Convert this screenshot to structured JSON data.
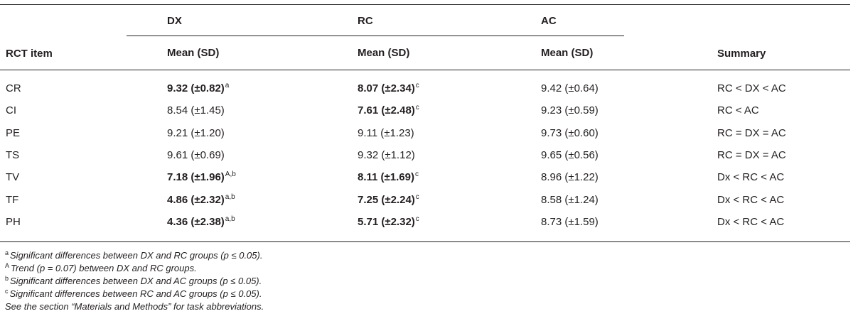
{
  "table": {
    "group_headers": [
      "DX",
      "RC",
      "AC"
    ],
    "row_header": "RCT item",
    "sub_headers": [
      "Mean (SD)",
      "Mean (SD)",
      "Mean (SD)"
    ],
    "summary_header": "Summary",
    "rows": [
      {
        "item": "CR",
        "cells": [
          {
            "v": "9.32 (±0.82)",
            "bold": true,
            "sup": "a"
          },
          {
            "v": "8.07 (±2.34)",
            "bold": true,
            "sup": "c"
          },
          {
            "v": "9.42 (±0.64)",
            "bold": false,
            "sup": ""
          }
        ],
        "summary": "RC < DX < AC"
      },
      {
        "item": "CI",
        "cells": [
          {
            "v": "8.54 (±1.45)",
            "bold": false,
            "sup": ""
          },
          {
            "v": "7.61 (±2.48)",
            "bold": true,
            "sup": "c"
          },
          {
            "v": "9.23 (±0.59)",
            "bold": false,
            "sup": ""
          }
        ],
        "summary": "RC < AC"
      },
      {
        "item": "PE",
        "cells": [
          {
            "v": "9.21 (±1.20)",
            "bold": false,
            "sup": ""
          },
          {
            "v": "9.11 (±1.23)",
            "bold": false,
            "sup": ""
          },
          {
            "v": "9.73 (±0.60)",
            "bold": false,
            "sup": ""
          }
        ],
        "summary": "RC = DX = AC"
      },
      {
        "item": "TS",
        "cells": [
          {
            "v": "9.61 (±0.69)",
            "bold": false,
            "sup": ""
          },
          {
            "v": "9.32 (±1.12)",
            "bold": false,
            "sup": ""
          },
          {
            "v": "9.65 (±0.56)",
            "bold": false,
            "sup": ""
          }
        ],
        "summary": "RC = DX = AC"
      },
      {
        "item": "TV",
        "cells": [
          {
            "v": "7.18 (±1.96)",
            "bold": true,
            "sup": "A,b"
          },
          {
            "v": "8.11 (±1.69)",
            "bold": true,
            "sup": "c"
          },
          {
            "v": "8.96 (±1.22)",
            "bold": false,
            "sup": ""
          }
        ],
        "summary": "Dx < RC < AC"
      },
      {
        "item": "TF",
        "cells": [
          {
            "v": "4.86 (±2.32)",
            "bold": true,
            "sup": "a,b"
          },
          {
            "v": "7.25 (±2.24)",
            "bold": true,
            "sup": "c"
          },
          {
            "v": "8.58 (±1.24)",
            "bold": false,
            "sup": ""
          }
        ],
        "summary": "Dx < RC < AC"
      },
      {
        "item": "PH",
        "cells": [
          {
            "v": "4.36 (±2.38)",
            "bold": true,
            "sup": "a,b"
          },
          {
            "v": "5.71 (±2.32)",
            "bold": true,
            "sup": "c"
          },
          {
            "v": "8.73 (±1.59)",
            "bold": false,
            "sup": ""
          }
        ],
        "summary": "Dx < RC < AC"
      }
    ]
  },
  "footnotes": [
    {
      "mark": "a",
      "text": "Significant differences between DX and RC groups (p ≤ 0.05)."
    },
    {
      "mark": "A",
      "text": "Trend (p = 0.07) between DX and RC groups."
    },
    {
      "mark": "b",
      "text": "Significant differences between DX and AC groups (p ≤ 0.05)."
    },
    {
      "mark": "c",
      "text": "Significant differences between RC and AC groups (p ≤ 0.05)."
    },
    {
      "mark": "",
      "text": "See the section “Materials and Methods” for task abbreviations."
    }
  ]
}
